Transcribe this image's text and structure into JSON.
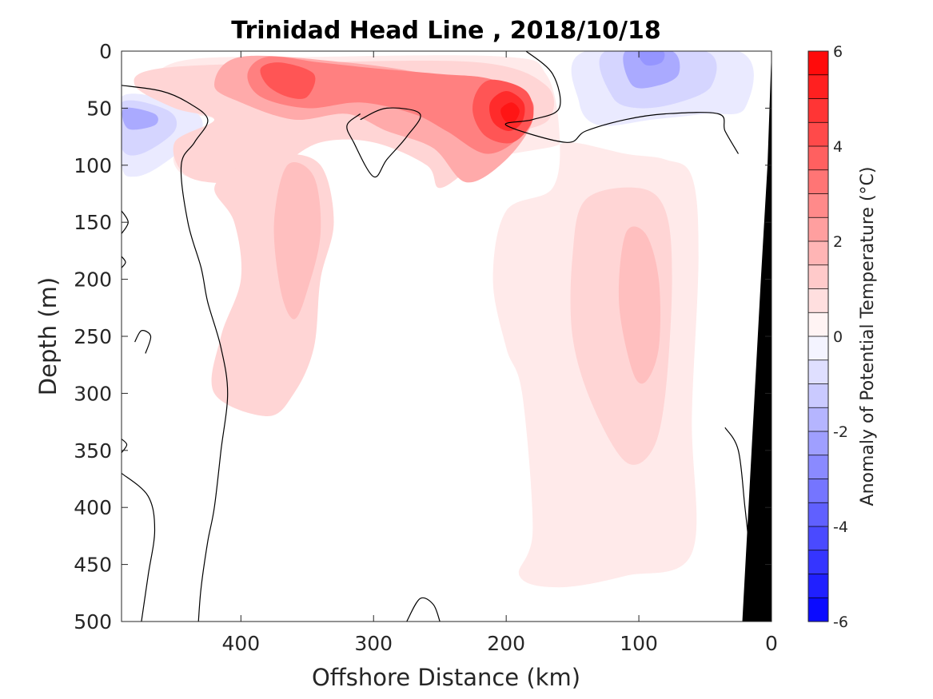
{
  "chart_data": {
    "type": "heatmap",
    "title": "Trinidad Head Line , 2018/10/18",
    "xlabel": "Offshore Distance (km)",
    "ylabel": "Depth (m)",
    "xlim": [
      490,
      0
    ],
    "ylim": [
      0,
      500
    ],
    "x_reversed": true,
    "y_reversed": true,
    "xticks": [
      400,
      300,
      200,
      100,
      0
    ],
    "yticks": [
      0,
      50,
      100,
      150,
      200,
      250,
      300,
      350,
      400,
      450,
      500
    ],
    "colorbar": {
      "label": "Anomaly of Potential Temperature (°C)",
      "range": [
        -6,
        6
      ],
      "step": 0.5,
      "ticks": [
        6,
        4,
        2,
        0,
        -2,
        -4,
        -6
      ],
      "low_color": "#0000ff",
      "mid_color": "#ffffff",
      "high_color": "#ff0000"
    },
    "zero_contour_color": "#000000",
    "bathymetry_color": "#000000",
    "regions": [
      {
        "level": 0.5,
        "points": [
          [
            450,
            10
          ],
          [
            340,
            5
          ],
          [
            200,
            5
          ],
          [
            170,
            20
          ],
          [
            160,
            70
          ],
          [
            165,
            120
          ],
          [
            200,
            140
          ],
          [
            210,
            200
          ],
          [
            200,
            260
          ],
          [
            188,
            300
          ],
          [
            180,
            420
          ],
          [
            190,
            460
          ],
          [
            160,
            470
          ],
          [
            110,
            460
          ],
          [
            60,
            440
          ],
          [
            60,
            320
          ],
          [
            55,
            180
          ],
          [
            60,
            110
          ],
          [
            80,
            95
          ],
          [
            110,
            90
          ],
          [
            150,
            80
          ],
          [
            170,
            85
          ],
          [
            230,
            95
          ],
          [
            260,
            90
          ],
          [
            290,
            70
          ],
          [
            330,
            70
          ],
          [
            370,
            80
          ],
          [
            410,
            100
          ],
          [
            440,
            110
          ],
          [
            450,
            90
          ],
          [
            420,
            60
          ],
          [
            470,
            50
          ]
        ]
      },
      {
        "level": 1.0,
        "points": [
          [
            460,
            15
          ],
          [
            350,
            10
          ],
          [
            220,
            10
          ],
          [
            170,
            30
          ],
          [
            168,
            60
          ],
          [
            200,
            75
          ],
          [
            225,
            100
          ],
          [
            250,
            120
          ],
          [
            260,
            100
          ],
          [
            300,
            80
          ],
          [
            340,
            80
          ],
          [
            370,
            100
          ],
          [
            400,
            115
          ],
          [
            440,
            110
          ],
          [
            450,
            80
          ],
          [
            420,
            60
          ],
          [
            450,
            50
          ],
          [
            480,
            30
          ]
        ]
      },
      {
        "level": 1.0,
        "points": [
          [
            370,
            90
          ],
          [
            340,
            100
          ],
          [
            330,
            150
          ],
          [
            340,
            200
          ],
          [
            345,
            260
          ],
          [
            360,
            300
          ],
          [
            380,
            320
          ],
          [
            420,
            300
          ],
          [
            415,
            250
          ],
          [
            400,
            200
          ],
          [
            405,
            150
          ],
          [
            420,
            120
          ],
          [
            400,
            100
          ]
        ]
      },
      {
        "level": 1.0,
        "points": [
          [
            140,
            130
          ],
          [
            100,
            120
          ],
          [
            80,
            140
          ],
          [
            75,
            200
          ],
          [
            80,
            300
          ],
          [
            90,
            350
          ],
          [
            110,
            360
          ],
          [
            135,
            310
          ],
          [
            150,
            250
          ],
          [
            150,
            180
          ]
        ]
      },
      {
        "level": 1.5,
        "points": [
          [
            365,
            100
          ],
          [
            345,
            110
          ],
          [
            340,
            160
          ],
          [
            350,
            210
          ],
          [
            360,
            235
          ],
          [
            370,
            210
          ],
          [
            375,
            150
          ]
        ]
      },
      {
        "level": 1.5,
        "points": [
          [
            110,
            160
          ],
          [
            95,
            160
          ],
          [
            85,
            200
          ],
          [
            85,
            260
          ],
          [
            95,
            290
          ],
          [
            105,
            280
          ],
          [
            115,
            220
          ]
        ]
      },
      {
        "level": 2.0,
        "points": [
          [
            400,
            5
          ],
          [
            320,
            10
          ],
          [
            260,
            20
          ],
          [
            230,
            30
          ],
          [
            190,
            35
          ],
          [
            180,
            60
          ],
          [
            200,
            95
          ],
          [
            230,
            115
          ],
          [
            255,
            85
          ],
          [
            290,
            70
          ],
          [
            320,
            55
          ],
          [
            360,
            60
          ],
          [
            400,
            45
          ],
          [
            420,
            30
          ]
        ]
      },
      {
        "level": 3.0,
        "points": [
          [
            380,
            5
          ],
          [
            340,
            10
          ],
          [
            300,
            15
          ],
          [
            250,
            20
          ],
          [
            210,
            25
          ],
          [
            180,
            45
          ],
          [
            190,
            75
          ],
          [
            215,
            90
          ],
          [
            245,
            70
          ],
          [
            270,
            55
          ],
          [
            310,
            45
          ],
          [
            350,
            50
          ],
          [
            385,
            40
          ],
          [
            395,
            20
          ]
        ]
      },
      {
        "level": 4.0,
        "points": [
          [
            370,
            10
          ],
          [
            345,
            20
          ],
          [
            350,
            40
          ],
          [
            365,
            40
          ],
          [
            380,
            30
          ],
          [
            385,
            15
          ]
        ]
      },
      {
        "level": 4.0,
        "points": [
          [
            210,
            25
          ],
          [
            185,
            35
          ],
          [
            180,
            60
          ],
          [
            195,
            80
          ],
          [
            215,
            75
          ],
          [
            225,
            55
          ],
          [
            222,
            35
          ]
        ]
      },
      {
        "level": 5.0,
        "points": [
          [
            200,
            35
          ],
          [
            187,
            45
          ],
          [
            188,
            62
          ],
          [
            198,
            70
          ],
          [
            210,
            62
          ],
          [
            212,
            45
          ]
        ]
      },
      {
        "level": 5.5,
        "points": [
          [
            196,
            45
          ],
          [
            190,
            52
          ],
          [
            194,
            62
          ],
          [
            201,
            61
          ],
          [
            204,
            51
          ]
        ]
      },
      {
        "level": -0.5,
        "points": [
          [
            490,
            40
          ],
          [
            440,
            50
          ],
          [
            430,
            70
          ],
          [
            460,
            100
          ],
          [
            480,
            110
          ],
          [
            490,
            100
          ]
        ]
      },
      {
        "level": -1.0,
        "points": [
          [
            490,
            45
          ],
          [
            455,
            52
          ],
          [
            450,
            70
          ],
          [
            475,
            90
          ],
          [
            490,
            85
          ]
        ]
      },
      {
        "level": -2.0,
        "points": [
          [
            488,
            50
          ],
          [
            465,
            55
          ],
          [
            465,
            65
          ],
          [
            485,
            68
          ]
        ]
      },
      {
        "level": -0.5,
        "points": [
          [
            310,
            55
          ],
          [
            295,
            57
          ],
          [
            298,
            70
          ],
          [
            315,
            72
          ],
          [
            320,
            62
          ]
        ]
      },
      {
        "level": -0.5,
        "points": [
          [
            140,
            0
          ],
          [
            25,
            0
          ],
          [
            20,
            50
          ],
          [
            50,
            55
          ],
          [
            90,
            60
          ],
          [
            130,
            65
          ],
          [
            145,
            45
          ]
        ]
      },
      {
        "level": -1.0,
        "points": [
          [
            125,
            0
          ],
          [
            50,
            0
          ],
          [
            45,
            30
          ],
          [
            70,
            45
          ],
          [
            100,
            50
          ],
          [
            120,
            40
          ]
        ]
      },
      {
        "level": -2.0,
        "points": [
          [
            110,
            0
          ],
          [
            75,
            0
          ],
          [
            70,
            20
          ],
          [
            85,
            30
          ],
          [
            105,
            30
          ]
        ]
      },
      {
        "level": -2.5,
        "points": [
          [
            100,
            0
          ],
          [
            82,
            0
          ],
          [
            83,
            10
          ],
          [
            95,
            12
          ]
        ]
      }
    ],
    "zero_contours": [
      [
        [
          490,
          30
        ],
        [
          460,
          35
        ],
        [
          440,
          45
        ],
        [
          425,
          60
        ],
        [
          435,
          80
        ],
        [
          445,
          100
        ],
        [
          440,
          150
        ],
        [
          430,
          190
        ],
        [
          425,
          220
        ],
        [
          415,
          260
        ],
        [
          410,
          300
        ],
        [
          415,
          350
        ],
        [
          420,
          400
        ],
        [
          425,
          430
        ],
        [
          430,
          470
        ],
        [
          432,
          500
        ]
      ],
      [
        [
          490,
          370
        ],
        [
          470,
          390
        ],
        [
          465,
          420
        ],
        [
          470,
          460
        ],
        [
          475,
          500
        ]
      ],
      [
        [
          490,
          140
        ],
        [
          485,
          150
        ],
        [
          490,
          160
        ]
      ],
      [
        [
          490,
          180
        ],
        [
          487,
          185
        ],
        [
          490,
          190
        ]
      ],
      [
        [
          480,
          255
        ],
        [
          475,
          245
        ],
        [
          468,
          250
        ],
        [
          472,
          265
        ]
      ],
      [
        [
          490,
          340
        ],
        [
          486,
          345
        ],
        [
          490,
          352
        ]
      ],
      [
        [
          310,
          60
        ],
        [
          290,
          50
        ],
        [
          265,
          55
        ],
        [
          275,
          75
        ],
        [
          290,
          95
        ],
        [
          300,
          110
        ],
        [
          315,
          80
        ],
        [
          320,
          65
        ],
        [
          310,
          55
        ]
      ],
      [
        [
          275,
          500
        ],
        [
          265,
          480
        ],
        [
          255,
          485
        ],
        [
          250,
          500
        ]
      ],
      [
        [
          185,
          0
        ],
        [
          165,
          20
        ],
        [
          160,
          50
        ],
        [
          180,
          60
        ],
        [
          200,
          65
        ],
        [
          155,
          80
        ],
        [
          140,
          70
        ],
        [
          110,
          60
        ],
        [
          80,
          55
        ],
        [
          40,
          55
        ],
        [
          35,
          70
        ],
        [
          25,
          90
        ]
      ],
      [
        [
          35,
          330
        ],
        [
          25,
          350
        ],
        [
          20,
          400
        ],
        [
          15,
          450
        ],
        [
          10,
          470
        ]
      ]
    ],
    "bathymetry": [
      [
        0,
        0
      ],
      [
        3,
        100
      ],
      [
        8,
        200
      ],
      [
        15,
        350
      ],
      [
        22,
        500
      ],
      [
        0,
        500
      ]
    ]
  }
}
